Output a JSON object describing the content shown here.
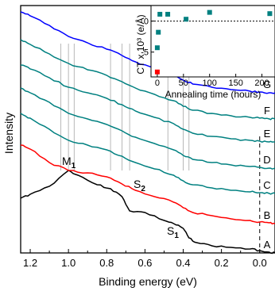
{
  "chart_data": [
    {
      "type": "line",
      "xlabel": "Binding energy (eV)",
      "ylabel": "Intensity",
      "xlim": [
        1.25,
        -0.08
      ],
      "x_reversed": true,
      "x_ticks": [
        1.2,
        1.0,
        0.8,
        0.6,
        0.4,
        0.2,
        0.0
      ],
      "x_tick_labels": [
        "1.2",
        "1.0",
        "0.8",
        "0.6",
        "0.4",
        "0.2",
        "0.0"
      ],
      "dashed_line_x": 0.0,
      "series": [
        {
          "name": "A",
          "color": "#000000",
          "offset": 0,
          "x": [
            1.25,
            1.2,
            1.1,
            1.0,
            0.95,
            0.85,
            0.78,
            0.72,
            0.68,
            0.6,
            0.5,
            0.45,
            0.4,
            0.37,
            0.33,
            0.25,
            0.15,
            0.05,
            0.0,
            -0.05,
            -0.08
          ],
          "y": [
            132,
            127,
            117,
            97,
            103,
            115,
            120,
            130,
            148,
            150,
            160,
            164,
            170,
            182,
            188,
            192,
            194,
            196,
            198,
            200,
            201
          ]
        },
        {
          "name": "B",
          "color": "#ff0000",
          "offset": 18,
          "x": [
            1.25,
            1.2,
            1.1,
            1.0,
            0.9,
            0.8,
            0.72,
            0.65,
            0.55,
            0.45,
            0.4,
            0.35,
            0.25,
            0.15,
            0.05,
            0.0,
            -0.05,
            -0.08
          ],
          "y": [
            83,
            88,
            105,
            115,
            118,
            123,
            132,
            140,
            148,
            155,
            162,
            168,
            172,
            176,
            178,
            180,
            181,
            182
          ]
        },
        {
          "name": "C",
          "color": "#008080",
          "offset": 37,
          "x": [
            1.25,
            1.2,
            1.1,
            1.0,
            0.9,
            0.8,
            0.72,
            0.65,
            0.55,
            0.45,
            0.4,
            0.35,
            0.25,
            0.15,
            0.05,
            0.0,
            -0.05,
            -0.08
          ],
          "y": [
            62,
            68,
            82,
            96,
            102,
            108,
            116,
            124,
            132,
            140,
            147,
            152,
            156,
            159,
            161,
            162,
            163,
            163
          ]
        },
        {
          "name": "D",
          "color": "#008080",
          "offset": 55,
          "x": [
            1.25,
            1.2,
            1.1,
            1.0,
            0.9,
            0.8,
            0.72,
            0.65,
            0.55,
            0.45,
            0.4,
            0.35,
            0.25,
            0.15,
            0.05,
            0.0,
            -0.05,
            -0.08
          ],
          "y": [
            48,
            54,
            66,
            80,
            87,
            94,
            102,
            110,
            118,
            126,
            133,
            138,
            142,
            145,
            147,
            148,
            149,
            149
          ]
        },
        {
          "name": "E",
          "color": "#008080",
          "offset": 72,
          "x": [
            1.25,
            1.2,
            1.1,
            1.0,
            0.9,
            0.8,
            0.72,
            0.65,
            0.55,
            0.45,
            0.4,
            0.35,
            0.25,
            0.15,
            0.05,
            0.0,
            -0.05,
            -0.08
          ],
          "y": [
            36,
            41,
            52,
            64,
            71,
            78,
            86,
            94,
            102,
            110,
            117,
            122,
            126,
            129,
            131,
            132,
            133,
            133
          ]
        },
        {
          "name": "F",
          "color": "#008080",
          "offset": 90,
          "x": [
            1.25,
            1.2,
            1.1,
            1.0,
            0.9,
            0.8,
            0.72,
            0.65,
            0.55,
            0.45,
            0.4,
            0.35,
            0.25,
            0.15,
            0.05,
            0.0,
            -0.05,
            -0.08
          ],
          "y": [
            22,
            28,
            40,
            52,
            60,
            67,
            75,
            83,
            91,
            99,
            106,
            111,
            115,
            118,
            120,
            121,
            122,
            122
          ]
        },
        {
          "name": "G",
          "color": "#0000ff",
          "offset": 108,
          "x": [
            1.25,
            1.2,
            1.1,
            1.0,
            0.9,
            0.8,
            0.72,
            0.65,
            0.55,
            0.45,
            0.4,
            0.35,
            0.25,
            0.15,
            0.05,
            0.0,
            -0.05,
            -0.08
          ],
          "y": [
            5,
            10,
            22,
            36,
            44,
            52,
            60,
            68,
            76,
            84,
            91,
            96,
            100,
            103,
            105,
            106,
            107,
            107
          ]
        }
      ],
      "vertical_markers": [
        1.04,
        1.0,
        0.97,
        0.78,
        0.72,
        0.68,
        0.48,
        0.4,
        0.37
      ],
      "annotations": [
        {
          "main": "M",
          "sub": "1"
        },
        {
          "main": "S",
          "sub": "2"
        },
        {
          "main": "S",
          "sub": "1"
        }
      ]
    },
    {
      "type": "scatter",
      "xlabel": "Annealing time (hours)",
      "ylabel": "CT x 10³ (e/Å)",
      "xlim": [
        -12,
        225
      ],
      "ylim": [
        -9,
        2.5
      ],
      "x_ticks": [
        0,
        50,
        100,
        150,
        200
      ],
      "y_ticks": [
        0,
        -5
      ],
      "y_tick_labels": [
        "0",
        "-5"
      ],
      "dashed_line_y": 0,
      "points": [
        {
          "x": 0,
          "y": -8.2,
          "color": "#ff0000"
        },
        {
          "x": 0,
          "y": -4.3,
          "color": "#008080"
        },
        {
          "x": 2,
          "y": -1.8,
          "color": "#008080"
        },
        {
          "x": 5,
          "y": 1.1,
          "color": "#008080"
        },
        {
          "x": 20,
          "y": 1.1,
          "color": "#008080"
        },
        {
          "x": 55,
          "y": 0.3,
          "color": "#008080"
        },
        {
          "x": 100,
          "y": 1.4,
          "color": "#008080"
        },
        {
          "x": 215,
          "y": 1.2,
          "color": "#008080"
        }
      ]
    }
  ],
  "labels": {
    "curve_letters": [
      "A",
      "B",
      "C",
      "D",
      "E",
      "F",
      "G"
    ],
    "xlabel": "Binding energy (eV)",
    "ylabel": "Intensity",
    "inset_xlabel": "Annealing time (hours)",
    "inset_ylabel": "CT x 10³ (e/Å)"
  }
}
